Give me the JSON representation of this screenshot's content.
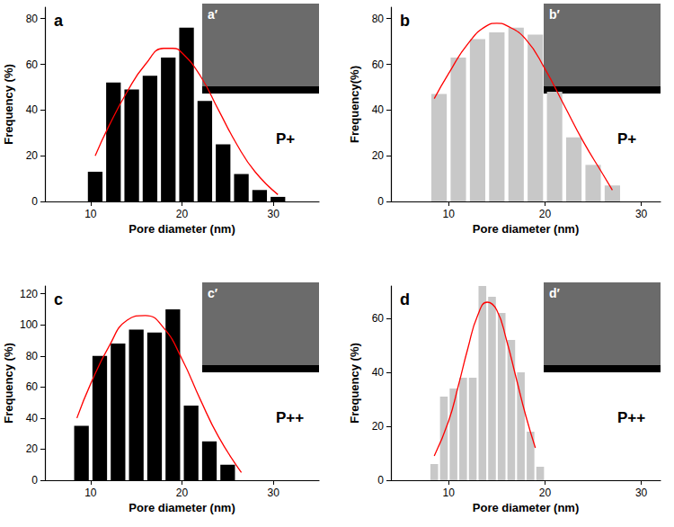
{
  "chart_data": [
    {
      "type": "histogram",
      "panel": "a",
      "inset_label": "a′",
      "annotation": "P+",
      "x_label": "Pore diameter (nm)",
      "y_label": "Frequency (%)",
      "bins": [
        9.5,
        11.5,
        13.5,
        15.5,
        17.5,
        19.5,
        21.5,
        23.5,
        25.5,
        27.5,
        29.5,
        31.5
      ],
      "values": [
        13,
        52,
        49,
        55,
        63,
        76,
        44,
        25,
        12,
        5,
        2
      ],
      "color": "#000000",
      "fit": {
        "type": "line",
        "color": "#ff0000",
        "x": [
          10.5,
          12,
          14,
          16,
          18,
          19,
          20,
          22,
          24,
          26,
          28,
          30.5
        ],
        "values": [
          20,
          33,
          48,
          60,
          67,
          67,
          65,
          55,
          40,
          25,
          13,
          3
        ]
      },
      "xlim": [
        5,
        35
      ],
      "xticks": [
        10,
        20,
        30
      ],
      "ylim": [
        0,
        85
      ],
      "yticks": [
        0,
        20,
        40,
        60,
        80
      ],
      "grid": false
    },
    {
      "type": "histogram",
      "panel": "b",
      "inset_label": "b′",
      "annotation": "P+",
      "x_label": "Pore diameter (nm)",
      "y_label": "Frequency(%)",
      "bins": [
        8,
        10,
        12,
        14,
        16,
        18,
        20,
        22,
        24,
        26,
        28
      ],
      "values": [
        47,
        63,
        71,
        74,
        76,
        73,
        48,
        28,
        16,
        7
      ],
      "color": "#c8c8c8",
      "fit": {
        "type": "line",
        "color": "#ff0000",
        "x": [
          8.5,
          10,
          12,
          14,
          15,
          16,
          18,
          20,
          22,
          24,
          26,
          27
        ],
        "values": [
          45,
          56,
          69,
          77,
          78,
          77,
          71,
          58,
          42,
          26,
          12,
          5
        ]
      },
      "xlim": [
        4,
        32
      ],
      "xticks": [
        10,
        20,
        30
      ],
      "ylim": [
        0,
        85
      ],
      "yticks": [
        0,
        20,
        40,
        60,
        80
      ],
      "grid": false
    },
    {
      "type": "histogram",
      "panel": "c",
      "inset_label": "c′",
      "annotation": "P++",
      "x_label": "Pore diameter (nm)",
      "y_label": "Frequency (%)",
      "bins": [
        8,
        10,
        12,
        14,
        16,
        18,
        20,
        22,
        24,
        26
      ],
      "values": [
        35,
        80,
        88,
        97,
        95,
        110,
        48,
        25,
        10
      ],
      "color": "#000000",
      "fit": {
        "type": "line",
        "color": "#ff0000",
        "x": [
          8.5,
          10,
          12,
          14,
          16,
          18,
          20,
          22,
          24,
          26.5
        ],
        "values": [
          40,
          62,
          86,
          103,
          106,
          98,
          78,
          52,
          28,
          5
        ]
      },
      "xlim": [
        5,
        35
      ],
      "xticks": [
        10,
        20,
        30
      ],
      "ylim": [
        0,
        125
      ],
      "yticks": [
        0,
        20,
        40,
        60,
        80,
        100,
        120
      ],
      "grid": false
    },
    {
      "type": "histogram",
      "panel": "d",
      "inset_label": "d′",
      "annotation": "P++",
      "x_label": "Pore diameter (nm)",
      "y_label": "Frequency (%)",
      "bins": [
        8,
        9,
        10,
        11,
        12,
        13,
        14,
        15,
        16,
        17,
        18,
        19,
        20
      ],
      "values": [
        6,
        31,
        34,
        38,
        38,
        72,
        68,
        62,
        52,
        40,
        18,
        5
      ],
      "color": "#c8c8c8",
      "fit": {
        "type": "line",
        "color": "#ff0000",
        "x": [
          8.5,
          10,
          11,
          12,
          13,
          14,
          15,
          16,
          17,
          18,
          19
        ],
        "values": [
          9,
          22,
          35,
          49,
          61,
          66,
          63,
          52,
          38,
          24,
          12
        ]
      },
      "xlim": [
        4,
        32
      ],
      "xticks": [
        10,
        20,
        30
      ],
      "ylim": [
        0,
        72
      ],
      "yticks": [
        0,
        20,
        40,
        60
      ],
      "grid": false
    }
  ]
}
